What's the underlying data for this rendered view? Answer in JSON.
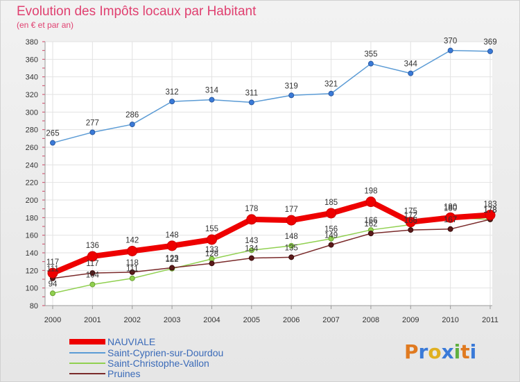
{
  "chart_data": {
    "type": "line",
    "title": "Evolution des Impôts locaux par Habitant",
    "subtitle": "(en € et par an)",
    "x": [
      "2000",
      "2001",
      "2002",
      "2003",
      "2004",
      "2005",
      "2006",
      "2007",
      "2008",
      "2009",
      "2010",
      "2011"
    ],
    "ylim": [
      80,
      380
    ],
    "yticks": [
      80,
      100,
      120,
      140,
      160,
      180,
      200,
      220,
      240,
      260,
      280,
      300,
      320,
      340,
      360,
      380
    ],
    "grid": true,
    "legend_placement": "bottom-left",
    "series": [
      {
        "name": "NAUVIALE",
        "color": "#ee0000",
        "values": [
          117,
          136,
          142,
          148,
          155,
          178,
          177,
          185,
          198,
          175,
          180,
          183
        ]
      },
      {
        "name": "Saint-Cyprien-sur-Dourdou",
        "color": "#5b9bd5",
        "values": [
          265,
          277,
          286,
          312,
          314,
          311,
          319,
          321,
          355,
          344,
          370,
          369
        ]
      },
      {
        "name": "Saint-Christophe-Vallon",
        "color": "#90d050",
        "values": [
          94,
          104,
          111,
          122,
          133,
          143,
          148,
          156,
          166,
          172,
          180,
          178
        ]
      },
      {
        "name": "Pruines",
        "color": "#7a2a2a",
        "values": [
          111,
          117,
          118,
          123,
          128,
          134,
          135,
          149,
          162,
          166,
          167,
          178
        ]
      }
    ]
  },
  "logo": {
    "text": "Proxiti"
  }
}
